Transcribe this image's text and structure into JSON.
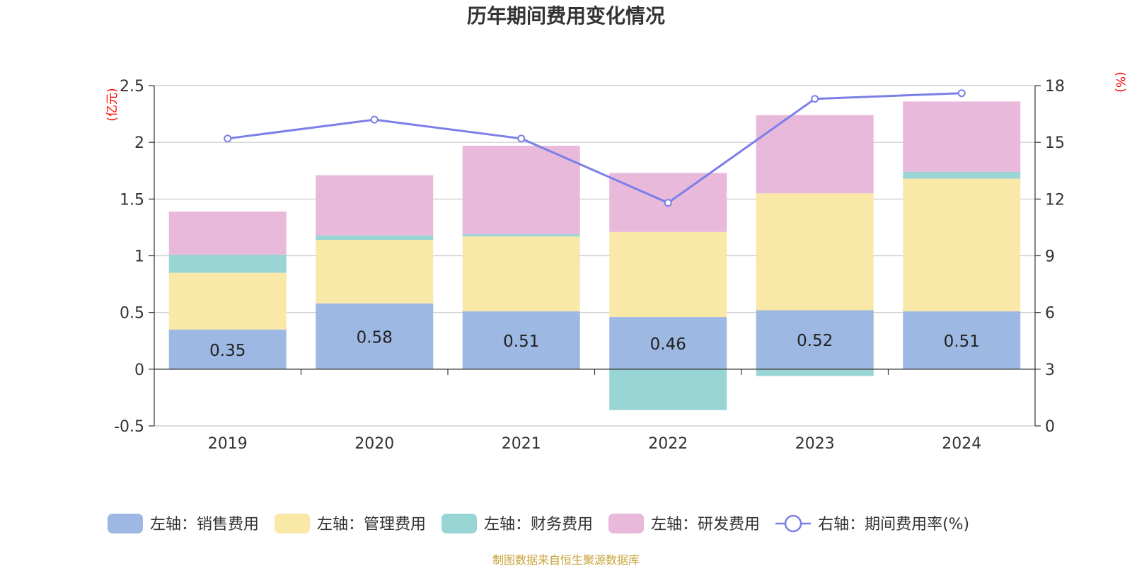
{
  "chart_data": {
    "type": "bar",
    "stacked": true,
    "title": "历年期间费用变化情况",
    "categories": [
      "2019",
      "2020",
      "2021",
      "2022",
      "2023",
      "2024"
    ],
    "left_axis": {
      "unit": "(亿元)",
      "range": [
        -0.5,
        2.5
      ],
      "ticks": [
        -0.5,
        0,
        0.5,
        1,
        1.5,
        2,
        2.5
      ],
      "tick_labels": [
        "-0.5",
        "0",
        "0.5",
        "1",
        "1.5",
        "2",
        "2.5"
      ]
    },
    "right_axis": {
      "unit": "(%)",
      "range": [
        0,
        18
      ],
      "ticks": [
        0,
        3,
        6,
        9,
        12,
        15,
        18
      ],
      "tick_labels": [
        "0",
        "3",
        "6",
        "9",
        "12",
        "15",
        "18"
      ]
    },
    "series": [
      {
        "name": "左轴：销售费用",
        "kind": "bar",
        "color": "#9db8e2",
        "values": [
          0.35,
          0.58,
          0.51,
          0.46,
          0.52,
          0.51
        ],
        "labels": [
          "0.35",
          "0.58",
          "0.51",
          "0.46",
          "0.52",
          "0.51"
        ]
      },
      {
        "name": "左轴：管理费用",
        "kind": "bar",
        "color": "#f9e8a8",
        "values": [
          0.5,
          0.56,
          0.66,
          0.75,
          1.03,
          1.17
        ]
      },
      {
        "name": "左轴：财务费用",
        "kind": "bar",
        "color": "#99d5d5",
        "values": [
          0.16,
          0.04,
          0.02,
          -0.36,
          -0.06,
          0.06
        ]
      },
      {
        "name": "左轴：研发费用",
        "kind": "bar",
        "color": "#e8b9da",
        "values": [
          0.38,
          0.53,
          0.78,
          0.52,
          0.69,
          0.62
        ]
      },
      {
        "name": "右轴：期间费用率(%)",
        "kind": "line",
        "color": "#7b7fe8",
        "values": [
          15.2,
          16.2,
          15.2,
          11.8,
          17.3,
          17.6
        ]
      }
    ],
    "legend_position": "bottom",
    "grid": true
  },
  "source": "制图数据来自恒生聚源数据库"
}
